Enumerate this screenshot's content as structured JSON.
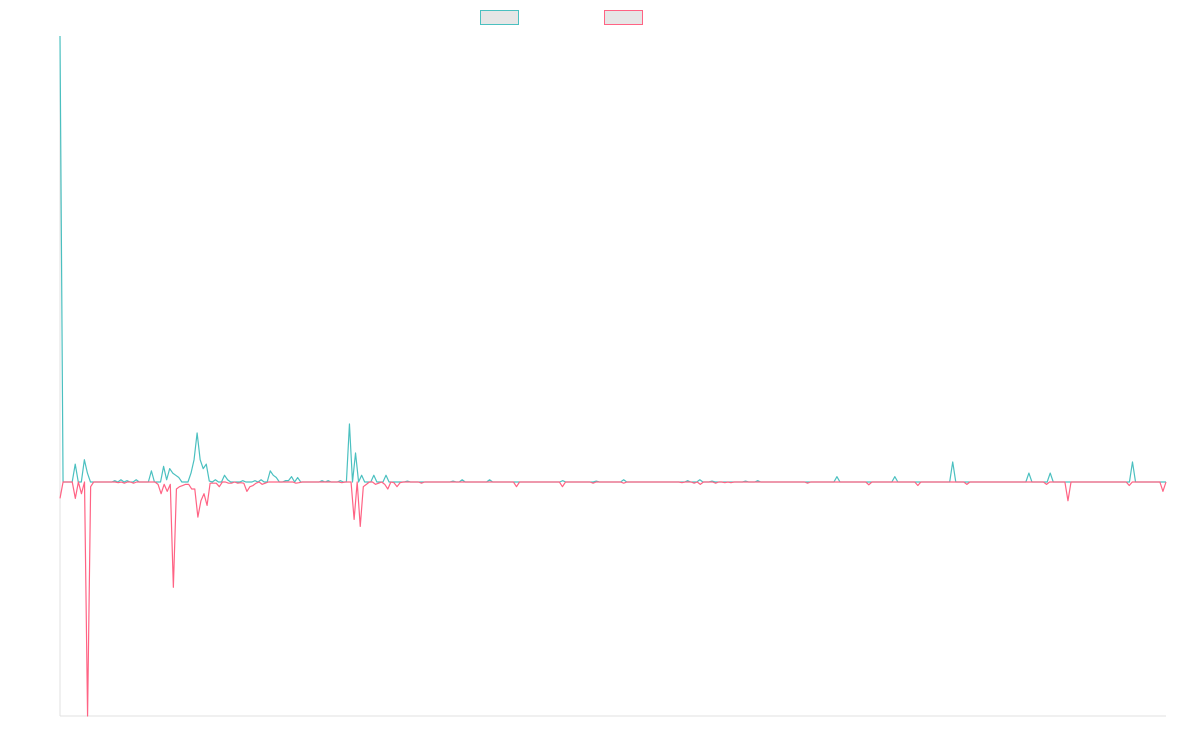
{
  "chart_data": {
    "type": "line",
    "title": "",
    "xlabel": "",
    "ylabel": "",
    "grid": false,
    "legend_position": "top-center",
    "ylim": [
      -100,
      100
    ],
    "series": [
      {
        "color": "#4bc0c0",
        "fill": "#e6e6e6",
        "values": [
          100,
          0,
          0,
          0,
          0,
          4,
          0,
          0,
          5,
          2,
          0,
          0,
          0,
          0,
          0,
          0,
          0,
          0,
          0.3,
          0,
          0.5,
          0,
          0.3,
          0,
          0,
          0.5,
          0,
          0,
          0,
          0,
          2.5,
          0,
          0,
          0,
          3.5,
          0.5,
          3,
          2,
          1.5,
          1,
          0,
          0,
          0,
          2,
          5,
          11,
          5,
          3,
          4,
          0.2,
          0,
          0.5,
          0,
          0,
          1.5,
          0.5,
          0,
          0,
          0,
          0,
          0.3,
          0,
          0,
          0,
          0.3,
          0,
          0.5,
          0,
          0,
          2.5,
          1.5,
          1,
          0,
          0,
          0.3,
          0.3,
          1.2,
          0,
          1,
          0,
          0,
          0,
          0,
          0,
          0,
          0,
          0.3,
          0,
          0.3,
          0,
          0,
          0,
          0.3,
          0,
          0,
          13,
          0,
          6.5,
          0,
          1.5,
          0,
          0,
          0,
          1.5,
          0,
          0,
          0,
          1.5,
          0,
          0,
          0,
          0,
          0,
          0,
          0.2,
          0,
          0,
          0,
          0,
          0,
          0,
          0,
          0,
          0,
          0,
          0,
          0,
          0,
          0,
          0.2,
          0,
          0,
          0.5,
          0,
          0,
          0,
          0,
          0,
          0,
          0,
          0,
          0.5,
          0,
          0,
          0,
          0,
          0,
          0,
          0,
          0,
          0,
          0,
          0,
          0,
          0,
          0,
          0,
          0,
          0,
          0,
          0,
          0,
          0,
          0,
          0,
          0.3,
          0,
          0,
          0,
          0,
          0,
          0,
          0,
          0,
          0,
          0,
          0.2,
          0,
          0,
          0,
          0,
          0,
          0,
          0,
          0,
          0.5,
          0,
          0,
          0,
          0,
          0,
          0,
          0,
          0,
          0,
          0,
          0,
          0,
          0,
          0,
          0,
          0,
          0,
          0,
          0,
          0,
          0.3,
          0,
          0,
          0,
          0.5,
          0,
          0,
          0,
          0.2,
          0,
          0,
          0,
          0,
          0,
          0,
          0,
          0,
          0,
          0,
          0.2,
          0,
          0,
          0,
          0.3,
          0,
          0,
          0,
          0,
          0,
          0,
          0,
          0,
          0,
          0,
          0,
          0,
          0,
          0,
          0,
          0,
          0,
          0,
          0,
          0,
          0,
          0,
          0,
          0,
          0,
          1.2,
          0,
          0,
          0,
          0,
          0,
          0,
          0,
          0,
          0,
          0,
          0,
          0,
          0,
          0,
          0,
          0,
          0,
          0,
          1.2,
          0,
          0,
          0,
          0,
          0,
          0,
          0,
          0,
          0,
          0,
          0,
          0,
          0,
          0,
          0,
          0,
          0,
          0,
          4.5,
          0,
          0,
          0,
          0,
          0,
          0,
          0,
          0,
          0,
          0,
          0,
          0,
          0,
          0,
          0,
          0,
          0,
          0,
          0,
          0,
          0,
          0,
          0,
          0,
          2,
          0,
          0,
          0,
          0,
          0,
          0,
          2,
          0,
          0,
          0,
          0,
          0,
          0,
          0,
          0,
          0,
          0,
          0,
          0,
          0,
          0,
          0,
          0,
          0,
          0,
          0,
          0,
          0,
          0,
          0,
          0,
          0,
          0,
          4.5,
          0,
          0,
          0,
          0,
          0,
          0,
          0,
          0,
          0,
          0,
          0
        ]
      },
      {
        "color": "#ff6384",
        "fill": "#e6e6e6",
        "values": [
          -7,
          0,
          0,
          0,
          0,
          -7,
          0,
          -5,
          0,
          -100,
          -2,
          0,
          0,
          0,
          0,
          0,
          0,
          0,
          0,
          -0.3,
          0,
          -0.5,
          0,
          0,
          -0.5,
          0,
          0,
          0,
          0,
          0,
          0,
          0,
          -1,
          -5,
          -1,
          -4,
          -1,
          -45,
          -3,
          -2,
          -1.5,
          -1,
          -1,
          -3,
          -3,
          -15,
          -8,
          -5,
          -10,
          -0.5,
          -0.5,
          -0.5,
          -2,
          0,
          0,
          -0.5,
          -0.5,
          0,
          -0.5,
          -0.3,
          -0.5,
          -4,
          -2,
          -1.5,
          -0.5,
          0,
          -1,
          -0.5,
          0,
          0,
          0,
          0,
          0,
          0,
          0,
          0,
          0,
          -0.5,
          -0.3,
          0,
          0,
          0,
          0,
          0,
          0,
          0,
          0,
          0,
          0,
          0,
          0,
          0,
          -0.3,
          0,
          0,
          0,
          -16,
          0,
          -19,
          -2,
          -1,
          0,
          0,
          -1,
          -0.5,
          0,
          -1,
          -3,
          0,
          -0.3,
          -2,
          -0.3,
          0,
          0,
          0,
          0,
          0,
          0,
          -0.5,
          0,
          0,
          0,
          0,
          0,
          0,
          0,
          0,
          0,
          0,
          0,
          0,
          0,
          0,
          0,
          0,
          0,
          0,
          0,
          0,
          0,
          0,
          0,
          0,
          0,
          0,
          0,
          0,
          0,
          0,
          -2,
          0,
          0,
          0,
          0,
          0,
          0,
          0,
          0,
          0,
          0,
          0,
          0,
          0,
          0,
          -2,
          0,
          0,
          0,
          0,
          0,
          0,
          0,
          0,
          0,
          -0.5,
          0,
          0,
          0,
          0,
          0,
          0,
          0,
          0,
          0,
          -0.5,
          0,
          0,
          0,
          0,
          0,
          0,
          0,
          0,
          0,
          0,
          0,
          0,
          0,
          0,
          0,
          0,
          0,
          0,
          -0.3,
          0,
          0,
          0,
          -0.5,
          0,
          -1,
          0,
          0,
          0,
          0,
          -0.5,
          0,
          0,
          -0.3,
          0,
          -0.3,
          0,
          0,
          0,
          0,
          0,
          0,
          0,
          0,
          0,
          0,
          0,
          0,
          0,
          0,
          0,
          0,
          0,
          0,
          0,
          0,
          0,
          0,
          0,
          0,
          -0.5,
          0,
          0,
          0,
          0,
          0,
          0,
          0,
          0,
          0,
          0,
          0,
          0,
          0,
          0,
          0,
          0,
          0,
          0,
          0,
          -1.2,
          0,
          0,
          0,
          0,
          0,
          0,
          0,
          0,
          0,
          0,
          0,
          0,
          0,
          0,
          0,
          -1.5,
          0,
          0,
          0,
          0,
          0,
          0,
          0,
          0,
          0,
          0,
          0,
          0,
          0,
          0,
          0,
          -1,
          0,
          0,
          0,
          0,
          0,
          0,
          0,
          0,
          0,
          0,
          0,
          0,
          0,
          0,
          0,
          0,
          0,
          0,
          0,
          0,
          0,
          0,
          0,
          0,
          0,
          -1,
          0,
          0,
          0,
          0,
          0,
          0,
          -8,
          0,
          0,
          0,
          0,
          0,
          0,
          0,
          0,
          0,
          0,
          0,
          0,
          0,
          0,
          0,
          0,
          0,
          0,
          0,
          -1.5,
          0,
          0,
          0,
          0,
          0,
          0,
          0,
          0,
          0,
          0,
          -4,
          0
        ]
      }
    ]
  }
}
